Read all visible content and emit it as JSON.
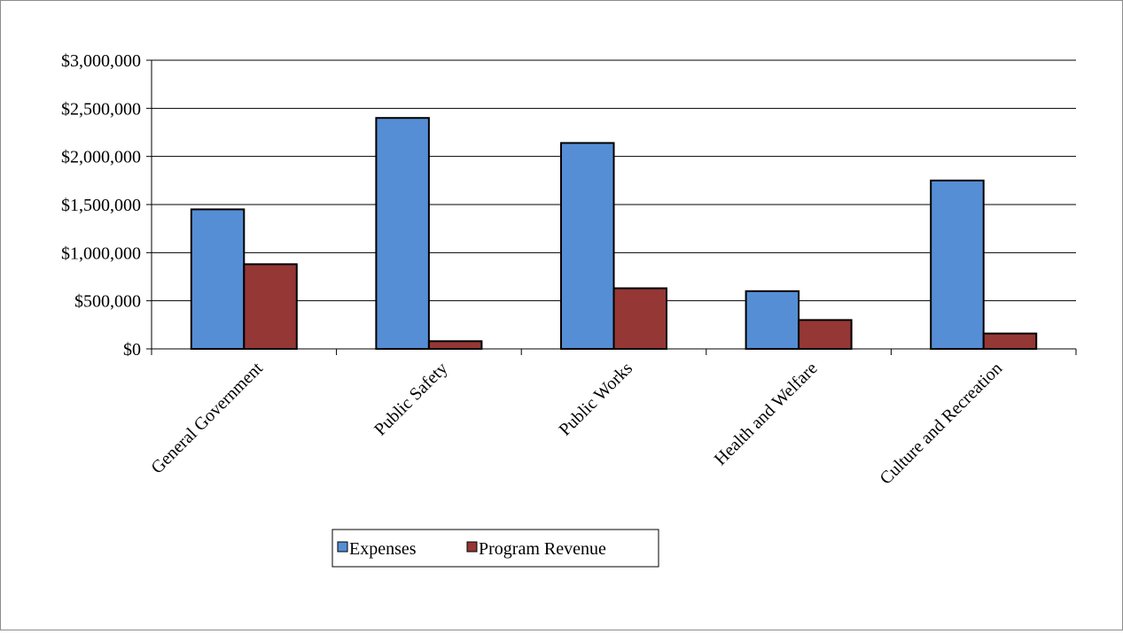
{
  "chart_data": {
    "type": "bar",
    "title": "",
    "xlabel": "",
    "ylabel": "",
    "categories": [
      "General Government",
      "Public Safety",
      "Public Works",
      "Health and Welfare",
      "Culture and Recreation"
    ],
    "series": [
      {
        "name": "Expenses",
        "color": "#558ed5",
        "values": [
          1450000,
          2400000,
          2140000,
          600000,
          1750000
        ]
      },
      {
        "name": "Program Revenue",
        "color": "#953735",
        "values": [
          880000,
          80000,
          630000,
          300000,
          160000
        ]
      }
    ],
    "ylim": [
      0,
      3000000
    ],
    "yticks": [
      0,
      500000,
      1000000,
      1500000,
      2000000,
      2500000,
      3000000
    ],
    "ytick_labels": [
      "$0",
      "$500,000",
      "$1,000,000",
      "$1,500,000",
      "$2,000,000",
      "$2,500,000",
      "$3,000,000"
    ],
    "grid": true,
    "legend_position": "bottom"
  }
}
